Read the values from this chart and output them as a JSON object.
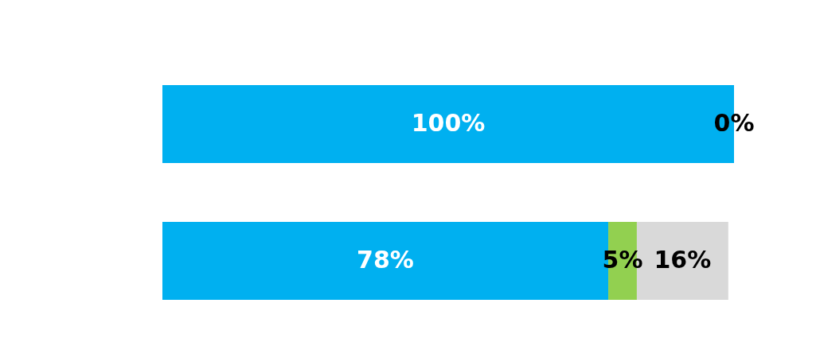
{
  "chart_data": {
    "type": "bar",
    "orientation": "horizontal",
    "stacked": true,
    "categories": [
      null,
      null
    ],
    "series": [
      {
        "color": "#00b0f0",
        "values": [
          100,
          78
        ],
        "value_labels": [
          "100%",
          "78%"
        ]
      },
      {
        "color": "#92d050",
        "values": [
          null,
          5
        ],
        "value_labels": [
          null,
          "5%"
        ]
      },
      {
        "color": "#d9d9d9",
        "values": [
          0,
          16
        ],
        "value_labels": [
          "0%",
          "16%"
        ]
      }
    ]
  }
}
